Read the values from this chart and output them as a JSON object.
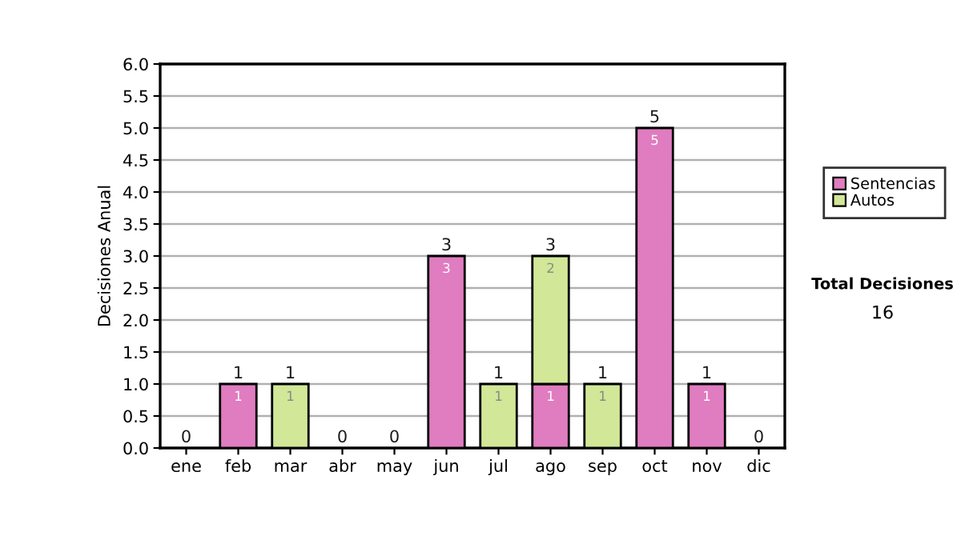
{
  "chart_data": {
    "type": "bar",
    "stacked": true,
    "ylabel": "Decisiones Anual",
    "categories": [
      "ene",
      "feb",
      "mar",
      "abr",
      "may",
      "jun",
      "jul",
      "ago",
      "sep",
      "oct",
      "nov",
      "dic"
    ],
    "series": [
      {
        "name": "Sentencias",
        "color": "#e07cc0",
        "values": [
          0,
          1,
          0,
          0,
          0,
          3,
          0,
          1,
          0,
          5,
          1,
          0
        ],
        "value_labels": [
          null,
          "1",
          null,
          null,
          null,
          "3",
          null,
          "1",
          null,
          "5",
          "1",
          null
        ]
      },
      {
        "name": "Autos",
        "color": "#d2e797",
        "values": [
          0,
          0,
          1,
          0,
          0,
          0,
          1,
          2,
          1,
          0,
          0,
          0
        ],
        "value_labels": [
          null,
          null,
          "1",
          null,
          null,
          null,
          "1",
          "2",
          "1",
          null,
          null,
          null
        ]
      }
    ],
    "totals": [
      "0",
      "1",
      "1",
      "0",
      "0",
      "3",
      "1",
      "3",
      "1",
      "5",
      "1",
      "0"
    ],
    "ylim": [
      0,
      6
    ],
    "yticks": [
      {
        "value": 0,
        "label": "0.0"
      },
      {
        "value": 0.5,
        "label": "0.5"
      },
      {
        "value": 1,
        "label": "1.0"
      },
      {
        "value": 1.5,
        "label": "1.5"
      },
      {
        "value": 2,
        "label": "2.0"
      },
      {
        "value": 2.5,
        "label": "2.5"
      },
      {
        "value": 3,
        "label": "3.0"
      },
      {
        "value": 3.5,
        "label": "3.5"
      },
      {
        "value": 4,
        "label": "4.0"
      },
      {
        "value": 4.5,
        "label": "4.5"
      },
      {
        "value": 5,
        "label": "5.0"
      },
      {
        "value": 5.5,
        "label": "5.5"
      },
      {
        "value": 6,
        "label": "6.0"
      }
    ],
    "grid": "y",
    "legend": "right",
    "annotations": [
      "Total Decisiones",
      "16"
    ]
  }
}
